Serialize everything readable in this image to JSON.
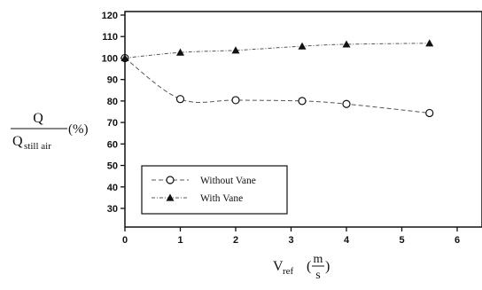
{
  "chart_data": {
    "type": "line",
    "title": "",
    "xlim": [
      0,
      6
    ],
    "ylim": [
      20,
      120
    ],
    "x_ticks": [
      "0",
      "1",
      "2",
      "3",
      "4",
      "5",
      "6"
    ],
    "y_ticks": [
      "30",
      "40",
      "50",
      "60",
      "70",
      "80",
      "90",
      "100",
      "110",
      "120"
    ],
    "ylabel": {
      "numerator": "Q",
      "denominator_main": "Q",
      "denominator_sub": "still air",
      "unit": "(%)"
    },
    "xlabel": {
      "main": "V",
      "sub": "ref",
      "unit_open": "(",
      "unit_num": "m",
      "unit_den": "s",
      "unit_close": ")"
    },
    "grid": false,
    "legend_position": "bottom-left",
    "series": [
      {
        "name": "Without Vane",
        "marker": "open-circle",
        "line_style": "dashed",
        "color": "#555555",
        "x": [
          0,
          1,
          2,
          3.2,
          4,
          5.5
        ],
        "y": [
          100,
          80.9,
          80.4,
          80.0,
          78.6,
          74.4
        ]
      },
      {
        "name": "With Vane",
        "marker": "filled-triangle",
        "line_style": "dash-dot",
        "color": "#555555",
        "x": [
          0,
          1,
          2,
          3.2,
          4,
          5.5
        ],
        "y": [
          100,
          102.6,
          103.6,
          105.5,
          106.4,
          106.9
        ]
      }
    ]
  }
}
